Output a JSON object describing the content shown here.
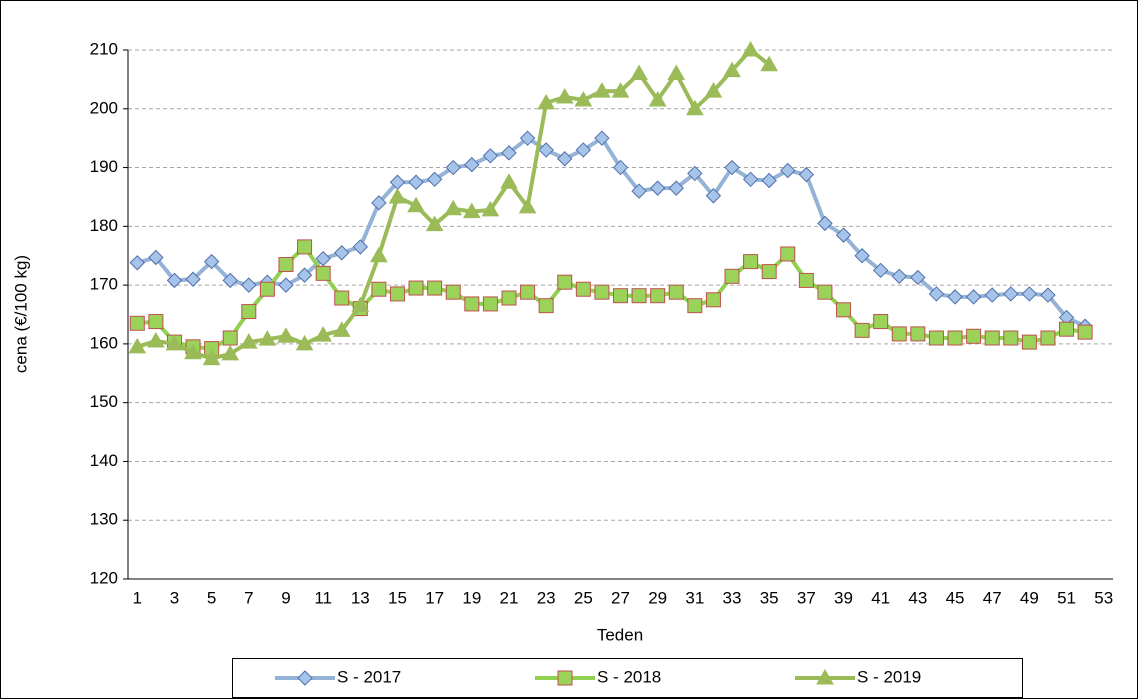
{
  "chart_data": {
    "type": "line",
    "x_label": "Teden",
    "y_label": "cena (€/100 kg)",
    "categories": [
      "1",
      null,
      "3",
      null,
      "5",
      null,
      "7",
      null,
      "9",
      null,
      "11",
      null,
      "13",
      null,
      "15",
      null,
      "17",
      null,
      "19",
      null,
      "21",
      null,
      "23",
      null,
      "25",
      null,
      "27",
      null,
      "29",
      null,
      "31",
      null,
      "33",
      null,
      "35",
      null,
      "37",
      null,
      "39",
      null,
      "41",
      null,
      "43",
      null,
      "45",
      null,
      "47",
      null,
      "49",
      null,
      "51",
      null,
      "53"
    ],
    "ylim": [
      120,
      210
    ],
    "yticks": [
      120,
      130,
      140,
      150,
      160,
      170,
      180,
      190,
      200,
      210
    ],
    "grid": true,
    "legend": "bottom",
    "series": [
      {
        "name": "S - 2017",
        "color": "#95b3d7",
        "marker": "diamond",
        "marker_fill": "#a6c4ea",
        "marker_edge": "#4f6fa8",
        "values": [
          173.8,
          174.7,
          170.8,
          171,
          174,
          170.8,
          170,
          170.5,
          170,
          171.7,
          174.5,
          175.5,
          176.5,
          184,
          187.5,
          187.5,
          188,
          190,
          190.5,
          192,
          192.5,
          195,
          193,
          191.5,
          193,
          195,
          190,
          186,
          186.5,
          186.5,
          189,
          185.2,
          190,
          188,
          187.8,
          189.5,
          188.8,
          180.5,
          178.5,
          175,
          172.5,
          171.5,
          171.3,
          168.5,
          168,
          168,
          168.3,
          168.5,
          168.5,
          168.3,
          164.5,
          163,
          null
        ]
      },
      {
        "name": "S - 2018",
        "color": "#92d050",
        "marker": "square",
        "marker_fill": "#9bd35a",
        "marker_edge": "#c0504d",
        "values": [
          163.5,
          163.8,
          160.3,
          159.5,
          159.2,
          161,
          165.5,
          169.3,
          173.5,
          176.5,
          172,
          167.8,
          166,
          169.3,
          168.5,
          169.5,
          169.5,
          168.8,
          166.8,
          166.8,
          167.8,
          168.8,
          166.5,
          170.5,
          169.3,
          168.8,
          168.2,
          168.2,
          168.2,
          168.8,
          166.5,
          167.5,
          171.5,
          174,
          172.3,
          175.3,
          170.8,
          168.8,
          165.8,
          162.3,
          163.8,
          161.7,
          161.7,
          161,
          161,
          161.3,
          161,
          161,
          160.3,
          161,
          162.5,
          162,
          null
        ]
      },
      {
        "name": "S - 2019",
        "color": "#9bbb59",
        "marker": "triangle",
        "marker_fill": "#9bbb59",
        "marker_edge": "#9bbb59",
        "values": [
          159.5,
          160.5,
          160,
          158.5,
          157.5,
          158.3,
          160.3,
          160.8,
          161.3,
          160,
          161.5,
          162.3,
          166.5,
          175,
          185,
          183.5,
          180.3,
          183,
          182.5,
          182.8,
          187.5,
          183.3,
          201,
          202,
          201.5,
          203,
          203,
          206,
          201.5,
          206,
          200,
          203,
          206.5,
          210,
          207.5,
          null,
          null,
          null,
          null,
          null,
          null,
          null,
          null,
          null,
          null,
          null,
          null,
          null,
          null,
          null,
          null,
          null,
          null
        ]
      }
    ]
  }
}
